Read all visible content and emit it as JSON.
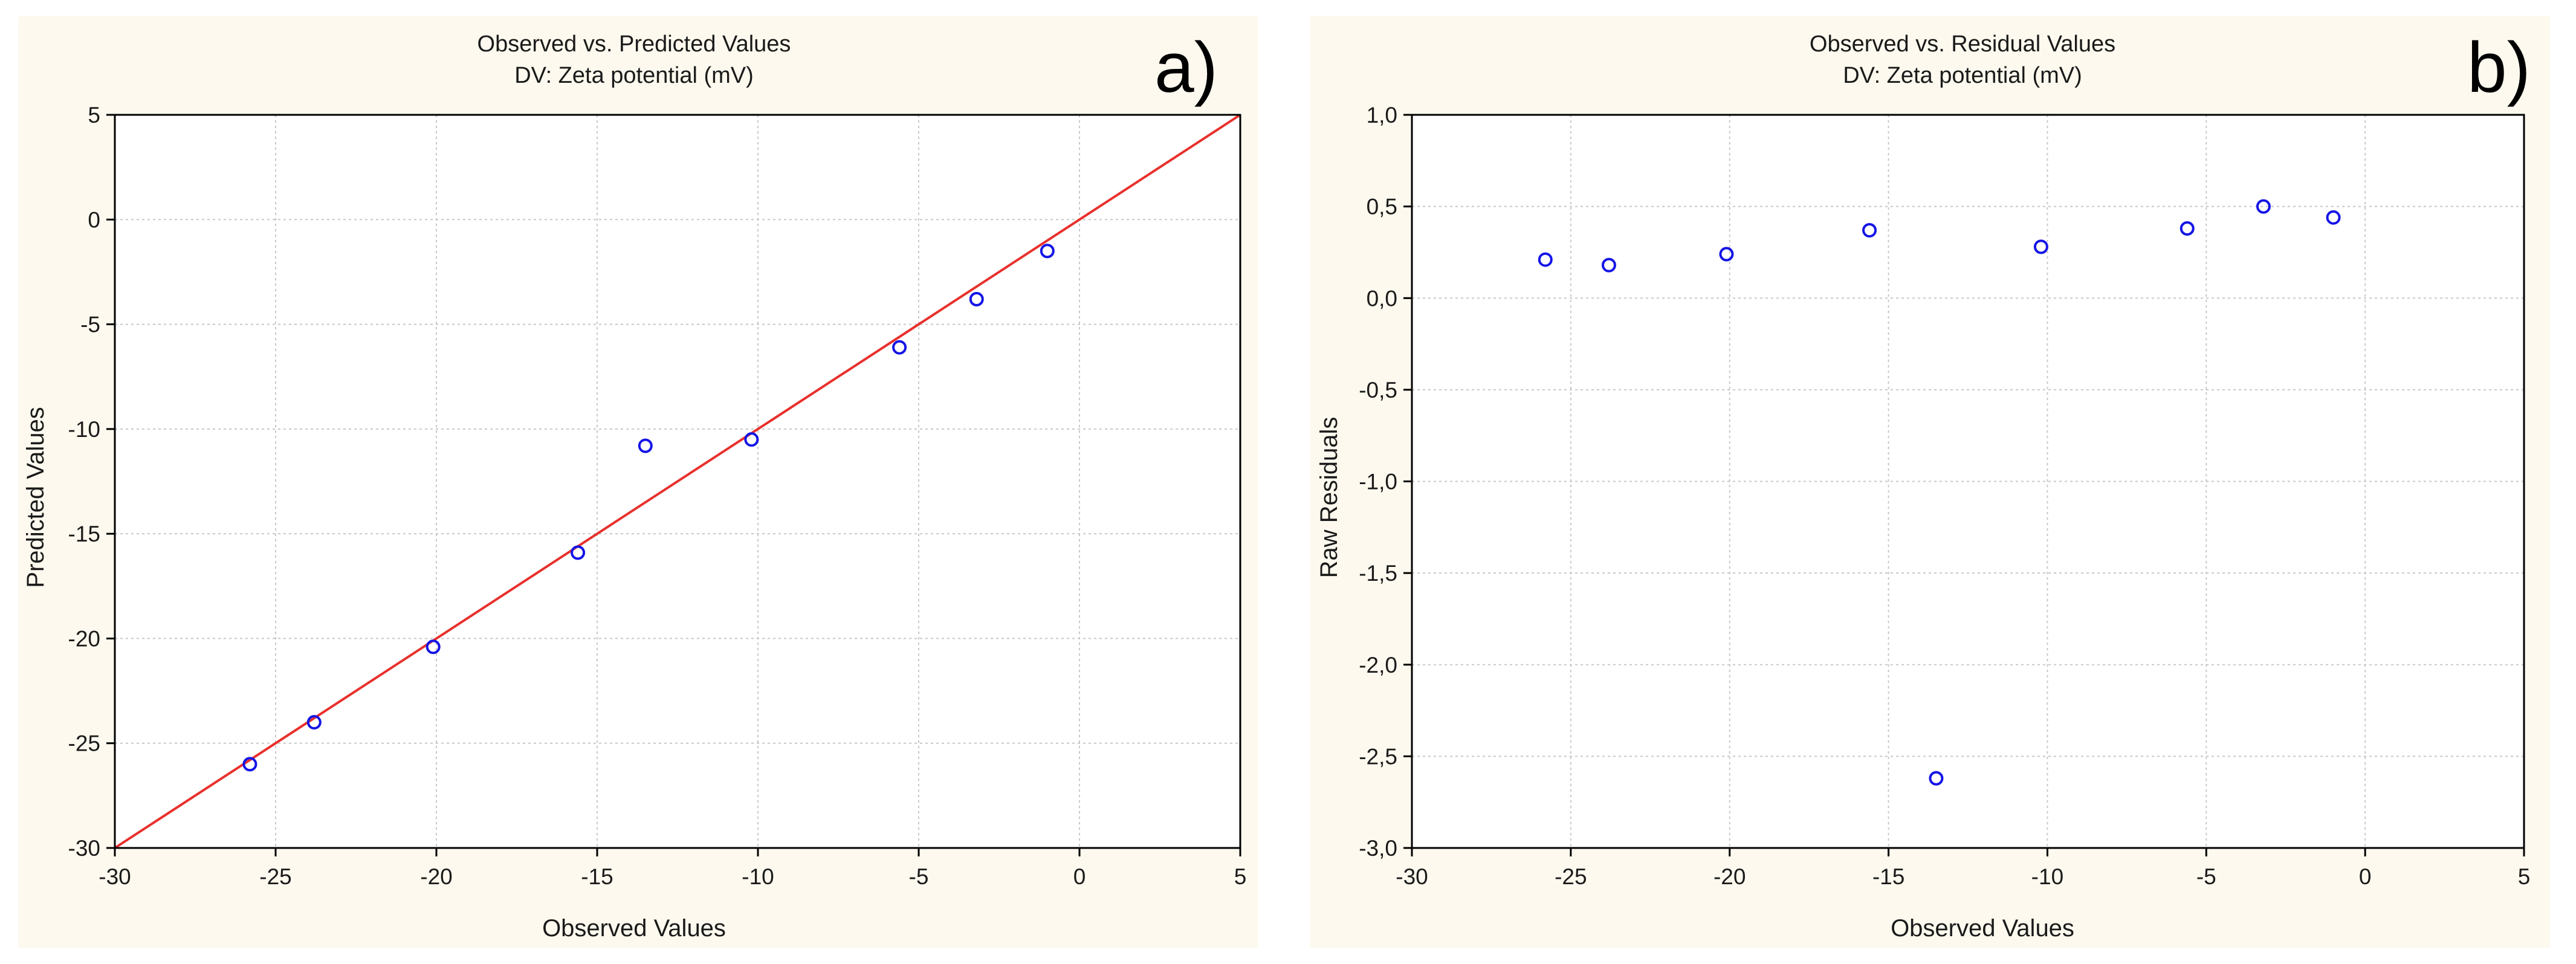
{
  "chart_data": [
    {
      "type": "scatter",
      "panel_tag": "a)",
      "title": "Observed vs. Predicted Values",
      "subtitle": "DV: Zeta potential (mV)",
      "xlabel": "Observed Values",
      "ylabel": "Predicted Values",
      "xlim": [
        -30,
        5
      ],
      "ylim": [
        -30,
        5
      ],
      "x_ticks": [
        -30,
        -25,
        -20,
        -15,
        -10,
        -5,
        0,
        5
      ],
      "y_ticks": [
        -30,
        -25,
        -20,
        -15,
        -10,
        -5,
        0,
        5
      ],
      "x_tick_labels": [
        "-30",
        "-25",
        "-20",
        "-15",
        "-10",
        "-5",
        "0",
        "5"
      ],
      "y_tick_labels": [
        "-30",
        "-25",
        "-20",
        "-15",
        "-10",
        "-5",
        "0",
        "5"
      ],
      "grid": true,
      "reference_line": {
        "from": [
          -30,
          -30
        ],
        "to": [
          5,
          5
        ],
        "color": "#e8302c"
      },
      "marker_color": "#1414e6",
      "points": [
        {
          "x": -25.8,
          "y": -26.0
        },
        {
          "x": -23.8,
          "y": -24.0
        },
        {
          "x": -20.1,
          "y": -20.4
        },
        {
          "x": -15.6,
          "y": -15.9
        },
        {
          "x": -13.5,
          "y": -10.8
        },
        {
          "x": -10.2,
          "y": -10.5
        },
        {
          "x": -5.6,
          "y": -6.1
        },
        {
          "x": -3.2,
          "y": -3.8
        },
        {
          "x": -1.0,
          "y": -1.5
        }
      ]
    },
    {
      "type": "scatter",
      "panel_tag": "b)",
      "title": "Observed vs. Residual Values",
      "subtitle": "DV: Zeta potential (mV)",
      "xlabel": "Observed Values",
      "ylabel": "Raw Residuals",
      "xlim": [
        -30,
        5
      ],
      "ylim": [
        -3.0,
        1.0
      ],
      "x_ticks": [
        -30,
        -25,
        -20,
        -15,
        -10,
        -5,
        0,
        5
      ],
      "y_ticks": [
        -3.0,
        -2.5,
        -2.0,
        -1.5,
        -1.0,
        -0.5,
        0.0,
        0.5,
        1.0
      ],
      "x_tick_labels": [
        "-30",
        "-25",
        "-20",
        "-15",
        "-10",
        "-5",
        "0",
        "5"
      ],
      "y_tick_labels": [
        "-3,0",
        "-2,5",
        "-2,0",
        "-1,5",
        "-1,0",
        "-0,5",
        "0,0",
        "0,5",
        "1,0"
      ],
      "grid": true,
      "marker_color": "#1414e6",
      "points": [
        {
          "x": -25.8,
          "y": 0.21
        },
        {
          "x": -23.8,
          "y": 0.18
        },
        {
          "x": -20.1,
          "y": 0.24
        },
        {
          "x": -15.6,
          "y": 0.37
        },
        {
          "x": -13.5,
          "y": -2.62
        },
        {
          "x": -10.2,
          "y": 0.28
        },
        {
          "x": -5.6,
          "y": 0.38
        },
        {
          "x": -3.2,
          "y": 0.5
        },
        {
          "x": -1.0,
          "y": 0.44
        }
      ]
    }
  ]
}
